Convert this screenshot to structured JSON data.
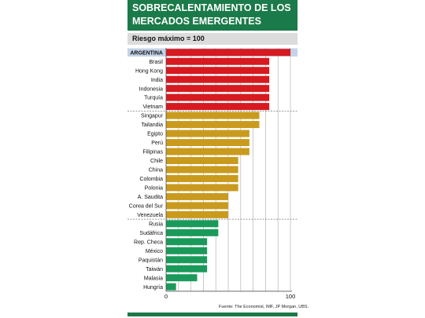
{
  "title_lines": [
    "SOBRECALENTAMIENTO DE LOS",
    "MERCADOS EMERGENTES"
  ],
  "subtitle": "Riesgo máximo = 100",
  "source": "Fuente: The Economist, IMF, JP Morgan, UBS.",
  "colors": {
    "title_bg": "#1b7a49",
    "red": "#d71920",
    "ochre": "#c99a1d",
    "green": "#1a9a5a",
    "highlight": "#c5d3e8",
    "divider": "#777777",
    "grid": "#b5b5b5"
  },
  "chart_data": {
    "type": "bar",
    "orientation": "horizontal",
    "title": "SOBRECALENTAMIENTO DE LOS MERCADOS EMERGENTES",
    "subtitle": "Riesgo máximo = 100",
    "xlim": [
      0,
      100
    ],
    "x_ticks": [
      0,
      100
    ],
    "highlighted": "ARGENTINA",
    "categories": [
      "ARGENTINA",
      "Brasil",
      "Hong Kong",
      "India",
      "Indonesia",
      "Turquía",
      "Vietnam",
      "Singapur",
      "Tailandia",
      "Egipto",
      "Perú",
      "Filipinas",
      "Chile",
      "China",
      "Colombia",
      "Polonia",
      "A. Saudita",
      "Corea del Sur",
      "Venezuela",
      "Rusia",
      "Sudáfrica",
      "Rep. Checa",
      "México",
      "Paquistán",
      "Taiwán",
      "Malasia",
      "Hungría"
    ],
    "values": [
      100,
      83,
      83,
      83,
      83,
      83,
      83,
      75,
      75,
      67,
      67,
      67,
      58,
      58,
      58,
      58,
      50,
      50,
      50,
      42,
      42,
      33,
      33,
      33,
      33,
      25,
      8
    ],
    "groups": [
      "red",
      "red",
      "red",
      "red",
      "red",
      "red",
      "red",
      "ochre",
      "ochre",
      "ochre",
      "ochre",
      "ochre",
      "ochre",
      "ochre",
      "ochre",
      "ochre",
      "ochre",
      "ochre",
      "ochre",
      "green",
      "green",
      "green",
      "green",
      "green",
      "green",
      "green",
      "green"
    ]
  }
}
